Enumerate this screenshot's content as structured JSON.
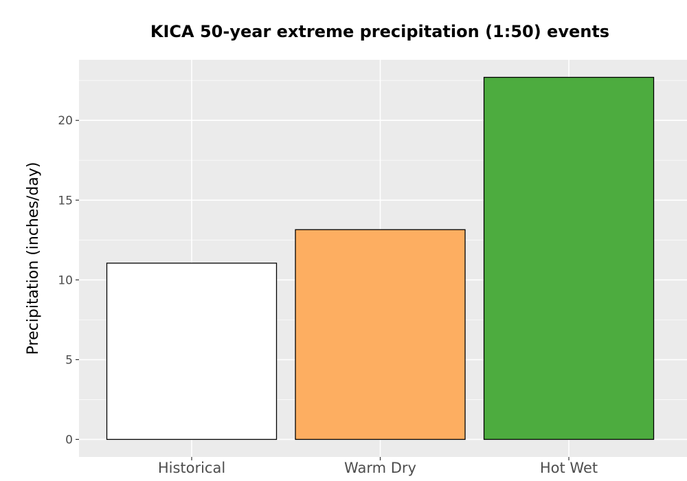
{
  "chart_data": {
    "type": "bar",
    "title": "KICA 50-year extreme precipitation (1:50) events",
    "xlabel": "",
    "ylabel": "Precipitation (inches/day)",
    "categories": [
      "Historical",
      "Warm Dry",
      "Hot Wet"
    ],
    "values": [
      11.05,
      13.15,
      22.7
    ],
    "colors": [
      "#FFFFFF",
      "#FDAE61",
      "#4DAC3F"
    ],
    "ylim": [
      -1.1,
      23.8
    ],
    "yticks": [
      0,
      5,
      10,
      15,
      20
    ],
    "ytick_labels": [
      "0",
      "5",
      "10",
      "15",
      "20"
    ],
    "grid": true,
    "panel_background": "#EBEBEB",
    "grid_color": "#FFFFFF",
    "bar_outline": "#000000",
    "legend": "none"
  }
}
